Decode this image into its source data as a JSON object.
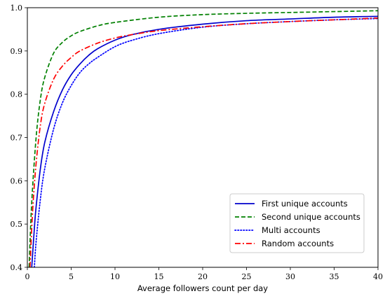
{
  "chart_data": {
    "type": "line",
    "title": "",
    "xlabel": "Average followers count per day",
    "ylabel": "",
    "xlim": [
      0,
      40
    ],
    "ylim": [
      0.4,
      1.0
    ],
    "x_ticks": [
      0,
      5,
      10,
      15,
      20,
      25,
      30,
      35,
      40
    ],
    "y_ticks": [
      0.4,
      0.5,
      0.6,
      0.7,
      0.8,
      0.9,
      1.0
    ],
    "x_tick_labels": [
      "0",
      "5",
      "10",
      "15",
      "20",
      "25",
      "30",
      "35",
      "40"
    ],
    "y_tick_labels": [
      "0.4",
      "0.5",
      "0.6",
      "0.7",
      "0.8",
      "0.9",
      "1.0"
    ],
    "grid": false,
    "legend_position": "lower-right",
    "series": [
      {
        "name": "First unique accounts",
        "color": "#0000cc",
        "linestyle": "solid",
        "x": [
          0.5,
          0.8,
          1,
          1.5,
          2,
          3,
          4,
          5,
          6,
          7,
          8,
          10,
          12,
          15,
          20,
          25,
          30,
          35,
          40
        ],
        "y": [
          0.4,
          0.49,
          0.54,
          0.63,
          0.69,
          0.76,
          0.81,
          0.845,
          0.87,
          0.89,
          0.905,
          0.925,
          0.938,
          0.95,
          0.962,
          0.97,
          0.974,
          0.978,
          0.98
        ]
      },
      {
        "name": "Second unique accounts",
        "color": "#008000",
        "linestyle": "dashed",
        "x": [
          0.2,
          0.5,
          1,
          1.5,
          2,
          3,
          4,
          5,
          6,
          8,
          10,
          15,
          20,
          25,
          30,
          35,
          40
        ],
        "y": [
          0.4,
          0.55,
          0.7,
          0.79,
          0.84,
          0.895,
          0.92,
          0.935,
          0.945,
          0.958,
          0.966,
          0.978,
          0.984,
          0.987,
          0.989,
          0.991,
          0.993
        ]
      },
      {
        "name": "Multi accounts",
        "color": "#0000ff",
        "linestyle": "dotted",
        "x": [
          0.8,
          1,
          1.5,
          2,
          3,
          4,
          5,
          6,
          7,
          8,
          10,
          12,
          15,
          20,
          25,
          30,
          35,
          40
        ],
        "y": [
          0.4,
          0.46,
          0.56,
          0.63,
          0.72,
          0.78,
          0.82,
          0.85,
          0.87,
          0.885,
          0.91,
          0.925,
          0.94,
          0.955,
          0.963,
          0.968,
          0.972,
          0.975
        ]
      },
      {
        "name": "Random accounts",
        "color": "#ff0000",
        "linestyle": "dashdot",
        "x": [
          0.3,
          0.6,
          1,
          1.5,
          2,
          3,
          4,
          5,
          6,
          8,
          10,
          12,
          15,
          20,
          25,
          30,
          35,
          40
        ],
        "y": [
          0.4,
          0.53,
          0.64,
          0.73,
          0.78,
          0.835,
          0.865,
          0.885,
          0.9,
          0.918,
          0.93,
          0.938,
          0.947,
          0.956,
          0.963,
          0.968,
          0.972,
          0.976
        ]
      }
    ]
  }
}
